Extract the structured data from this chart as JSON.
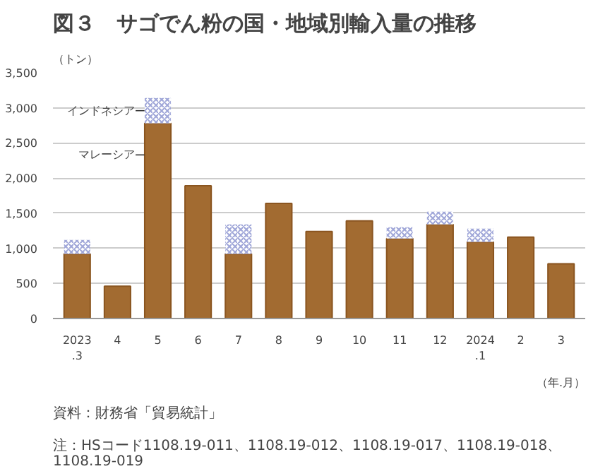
{
  "chart_data": {
    "type": "bar",
    "title": "図３　サゴでん粉の国・地域別輸入量の推移",
    "ylabel": "（トン）",
    "xlabel": "（年.月）",
    "categories": [
      "2023\n.3",
      "4",
      "5",
      "6",
      "7",
      "8",
      "9",
      "10",
      "11",
      "12",
      "2024\n.1",
      "2",
      "3"
    ],
    "stacked": true,
    "series": [
      {
        "name": "マレーシア",
        "color": "#a26b31",
        "values": [
          920,
          460,
          2780,
          1890,
          920,
          1640,
          1240,
          1390,
          1140,
          1340,
          1090,
          1160,
          780
        ]
      },
      {
        "name": "インドネシア",
        "color": "#9fa6d8",
        "values": [
          200,
          null,
          360,
          null,
          420,
          null,
          null,
          null,
          160,
          180,
          190,
          null,
          null
        ]
      }
    ],
    "ylim": [
      0,
      3500
    ],
    "yticks": [
      {
        "value": 0,
        "label": "0"
      },
      {
        "value": 500,
        "label": "500"
      },
      {
        "value": 1000,
        "label": "1,000"
      },
      {
        "value": 1500,
        "label": "1,500"
      },
      {
        "value": 2000,
        "label": "2,000"
      },
      {
        "value": 2500,
        "label": "2,500"
      },
      {
        "value": 3000,
        "label": "3,000"
      },
      {
        "value": 3500,
        "label": "3,500"
      }
    ],
    "grid": "y",
    "annotations": [
      "資料：財務省「貿易統計」",
      "注：HSコード1108.19-011、1108.19-012、1108.19-017、1108.19-018、\n1108.19-019"
    ]
  }
}
